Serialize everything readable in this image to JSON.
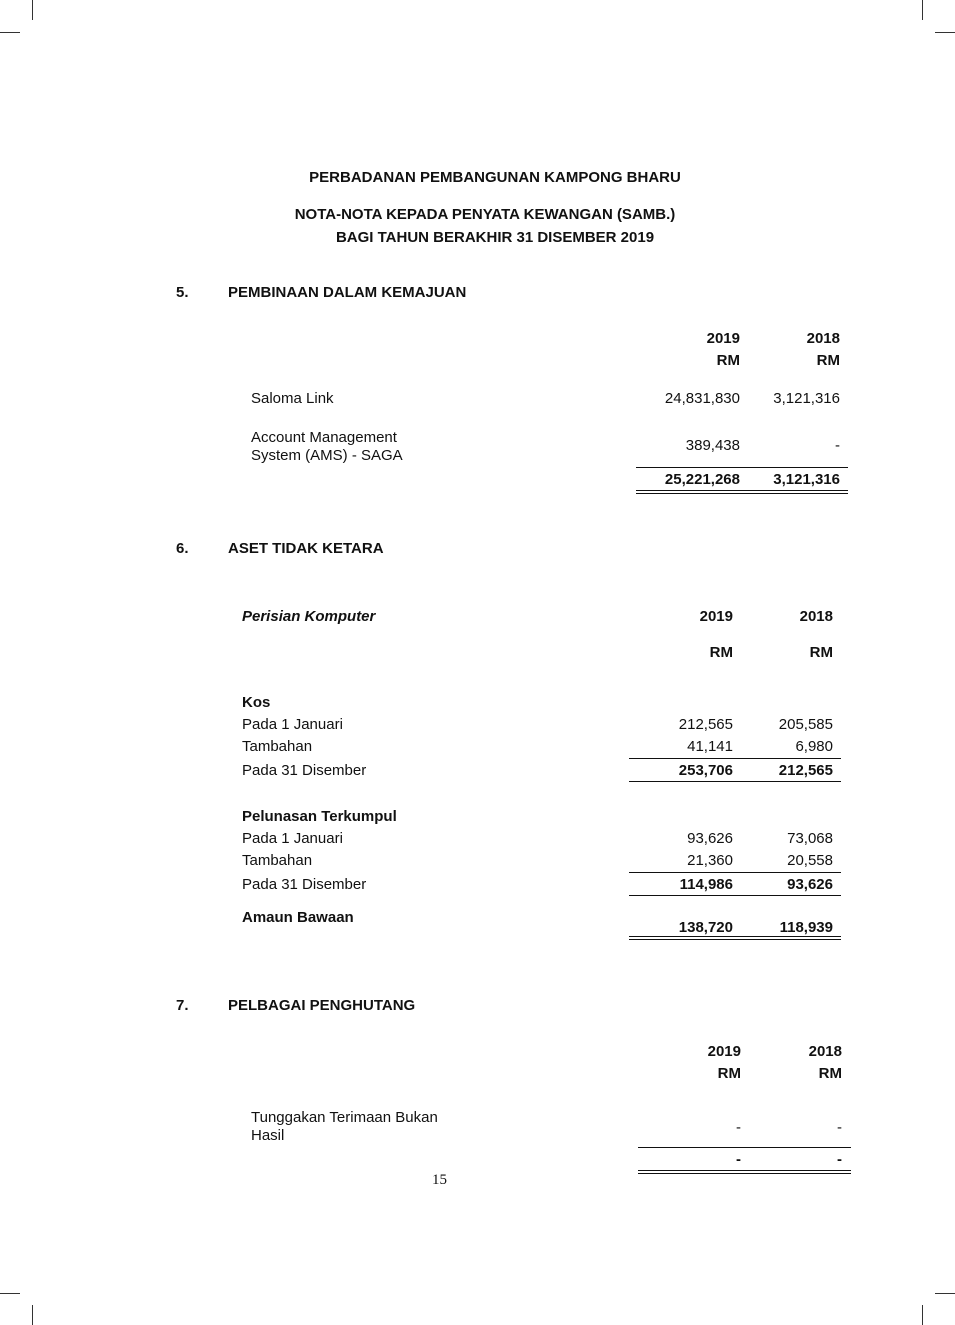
{
  "header": {
    "org": "PERBADANAN PEMBANGUNAN KAMPONG BHARU",
    "title": "NOTA-NOTA KEPADA PENYATA KEWANGAN (SAMB.)",
    "subtitle": "BAGI TAHUN BERAKHIR 31 DISEMBER 2019"
  },
  "note5": {
    "number": "5.",
    "heading": "PEMBINAAN DALAM KEMAJUAN",
    "col_years": [
      "2019",
      "2018"
    ],
    "col_unit": [
      "RM",
      "RM"
    ],
    "rows": [
      {
        "label": "Saloma Link",
        "v2019": "24,831,830",
        "v2018": "3,121,316"
      },
      {
        "label_line1": "Account Management",
        "label_line2": "System (AMS) - SAGA",
        "v2019": "389,438",
        "v2018": "-"
      }
    ],
    "total": {
      "v2019": "25,221,268",
      "v2018": "3,121,316"
    }
  },
  "note6": {
    "number": "6.",
    "heading": "ASET TIDAK KETARA",
    "subheading": "Perisian Komputer",
    "col_years": [
      "2019",
      "2018"
    ],
    "col_unit": [
      "RM",
      "RM"
    ],
    "kos": {
      "heading": "Kos",
      "rows": [
        {
          "label": "Pada 1 Januari",
          "v2019": "212,565",
          "v2018": "205,585"
        },
        {
          "label": "Tambahan",
          "v2019": "41,141",
          "v2018": "6,980"
        },
        {
          "label": "Pada 31 Disember",
          "v2019": "253,706",
          "v2018": "212,565"
        }
      ]
    },
    "pelunasan": {
      "heading": "Pelunasan Terkumpul",
      "rows": [
        {
          "label": "Pada 1 Januari",
          "v2019": "93,626",
          "v2018": "73,068"
        },
        {
          "label": "Tambahan",
          "v2019": "21,360",
          "v2018": "20,558"
        },
        {
          "label": "Pada 31 Disember",
          "v2019": "114,986",
          "v2018": "93,626"
        }
      ]
    },
    "amaun": {
      "label": "Amaun Bawaan",
      "v2019": "138,720",
      "v2018": "118,939"
    }
  },
  "note7": {
    "number": "7.",
    "heading": "PELBAGAI PENGHUTANG",
    "col_years": [
      "2019",
      "2018"
    ],
    "col_unit": [
      "RM",
      "RM"
    ],
    "rows": [
      {
        "label_line1": "Tunggakan Terimaan Bukan",
        "label_line2": "Hasil",
        "v2019": "-",
        "v2018": "-"
      }
    ],
    "total": {
      "v2019": "-",
      "v2018": "-"
    }
  },
  "footer": {
    "page_number": "15"
  }
}
